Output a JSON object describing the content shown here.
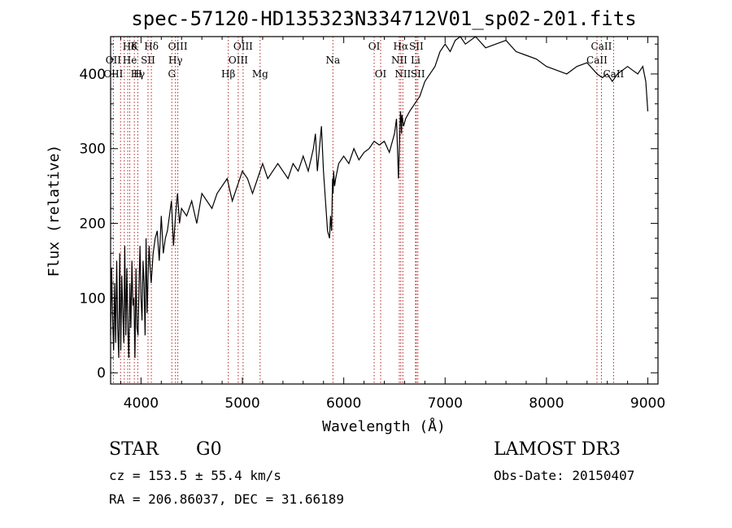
{
  "chart_data": {
    "type": "line",
    "title": "spec-57120-HD135323N334712V01_sp02-201.fits",
    "xlabel": "Wavelength (Å)",
    "ylabel": "Flux (relative)",
    "xlim": [
      3700,
      9100
    ],
    "ylim": [
      -15,
      450
    ],
    "x_ticks": [
      4000,
      5000,
      6000,
      7000,
      8000,
      9000
    ],
    "y_ticks": [
      0,
      100,
      200,
      300,
      400
    ],
    "grid": false,
    "series": [
      {
        "name": "spectrum",
        "x": [
          3700,
          3710,
          3720,
          3730,
          3740,
          3750,
          3760,
          3770,
          3780,
          3790,
          3800,
          3810,
          3820,
          3830,
          3840,
          3850,
          3860,
          3870,
          3880,
          3890,
          3900,
          3910,
          3920,
          3930,
          3940,
          3950,
          3960,
          3970,
          3980,
          3990,
          4000,
          4010,
          4020,
          4030,
          4040,
          4050,
          4060,
          4070,
          4080,
          4090,
          4100,
          4120,
          4140,
          4160,
          4180,
          4200,
          4220,
          4240,
          4260,
          4280,
          4300,
          4320,
          4340,
          4360,
          4380,
          4400,
          4450,
          4500,
          4550,
          4600,
          4650,
          4700,
          4750,
          4800,
          4850,
          4900,
          4950,
          5000,
          5050,
          5100,
          5150,
          5200,
          5250,
          5300,
          5350,
          5400,
          5450,
          5500,
          5550,
          5600,
          5650,
          5700,
          5720,
          5740,
          5760,
          5780,
          5800,
          5820,
          5840,
          5860,
          5870,
          5880,
          5890,
          5895,
          5900,
          5910,
          5920,
          5950,
          6000,
          6050,
          6100,
          6150,
          6200,
          6250,
          6300,
          6350,
          6400,
          6450,
          6500,
          6520,
          6540,
          6555,
          6560,
          6565,
          6570,
          6575,
          6590,
          6610,
          6650,
          6700,
          6750,
          6800,
          6850,
          6900,
          6950,
          7000,
          7050,
          7100,
          7150,
          7200,
          7300,
          7400,
          7500,
          7600,
          7700,
          7800,
          7900,
          8000,
          8100,
          8200,
          8300,
          8400,
          8500,
          8550,
          8600,
          8650,
          8700,
          8750,
          8800,
          8850,
          8900,
          8950,
          8980,
          9000
        ],
        "values": [
          50,
          140,
          70,
          30,
          120,
          40,
          150,
          60,
          20,
          160,
          30,
          130,
          80,
          40,
          170,
          50,
          140,
          60,
          20,
          120,
          60,
          150,
          90,
          100,
          20,
          140,
          60,
          50,
          110,
          170,
          100,
          70,
          150,
          120,
          50,
          180,
          80,
          130,
          170,
          140,
          120,
          160,
          180,
          190,
          150,
          210,
          160,
          180,
          190,
          210,
          230,
          170,
          210,
          240,
          200,
          220,
          210,
          230,
          200,
          240,
          230,
          220,
          240,
          250,
          260,
          230,
          250,
          270,
          260,
          240,
          260,
          280,
          260,
          270,
          280,
          270,
          260,
          280,
          270,
          290,
          270,
          300,
          320,
          270,
          300,
          330,
          270,
          230,
          190,
          180,
          210,
          190,
          260,
          240,
          270,
          250,
          260,
          280,
          290,
          280,
          300,
          285,
          295,
          300,
          310,
          305,
          310,
          295,
          320,
          340,
          260,
          330,
          350,
          340,
          320,
          345,
          330,
          340,
          350,
          360,
          370,
          390,
          400,
          410,
          430,
          440,
          430,
          445,
          450,
          440,
          450,
          435,
          440,
          445,
          430,
          425,
          420,
          410,
          405,
          400,
          410,
          415,
          400,
          395,
          400,
          390,
          400,
          405,
          410,
          405,
          400,
          410,
          390,
          350
        ]
      }
    ],
    "line_markers": [
      {
        "label": "Hδ",
        "x": 3889,
        "row": 0
      },
      {
        "label": "OII",
        "x": 3727,
        "row": 1
      },
      {
        "label": "OIII",
        "x": 3727,
        "row": 2
      },
      {
        "label": "K",
        "x": 3934,
        "row": 0
      },
      {
        "label": "He",
        "x": 3889,
        "row": 1
      },
      {
        "label": "Hγ",
        "x": 3968,
        "row": 2
      },
      {
        "label": "SII",
        "x": 4069,
        "row": 1
      },
      {
        "label": "H",
        "x": 3968,
        "row": 2
      },
      {
        "label": "Hδ",
        "x": 4102,
        "row": 0
      },
      {
        "label": "OIII",
        "x": 4363,
        "row": 0
      },
      {
        "label": "Hγ",
        "x": 4340,
        "row": 1
      },
      {
        "label": "G",
        "x": 4304,
        "row": 2
      },
      {
        "label": "OIII",
        "x": 5007,
        "row": 0
      },
      {
        "label": "OIII",
        "x": 4959,
        "row": 1
      },
      {
        "label": "Hβ",
        "x": 4861,
        "row": 2
      },
      {
        "label": "Mg",
        "x": 5175,
        "row": 2
      },
      {
        "label": "Na",
        "x": 5893,
        "row": 1
      },
      {
        "label": "OI",
        "x": 6300,
        "row": 0
      },
      {
        "label": "OI",
        "x": 6364,
        "row": 2
      },
      {
        "label": "Hα",
        "x": 6563,
        "row": 0
      },
      {
        "label": "SII",
        "x": 6716,
        "row": 0
      },
      {
        "label": "NII",
        "x": 6548,
        "row": 1
      },
      {
        "label": "Li",
        "x": 6708,
        "row": 1
      },
      {
        "label": "NII",
        "x": 6583,
        "row": 2
      },
      {
        "label": "SII",
        "x": 6731,
        "row": 2
      },
      {
        "label": "CaII",
        "x": 8542,
        "row": 0
      },
      {
        "label": "CaII",
        "x": 8498,
        "row": 1
      },
      {
        "label": "CaII",
        "x": 8662,
        "row": 2
      }
    ],
    "marker_lines_x": [
      3727,
      3798,
      3835,
      3869,
      3889,
      3934,
      3968,
      4069,
      4102,
      4304,
      4340,
      4363,
      4861,
      4959,
      5007,
      5175,
      5893,
      6300,
      6364,
      6548,
      6563,
      6583,
      6708,
      6716,
      6731,
      8498,
      8542,
      8662
    ]
  },
  "info": {
    "object_class": "STAR",
    "subclass": "G0",
    "survey": "LAMOST DR3",
    "redshift": "cz = 153.5 ± 55.4 km/s",
    "obs_date": "Obs-Date: 20150407",
    "coords": "RA = 206.86037, DEC =  31.66189"
  }
}
